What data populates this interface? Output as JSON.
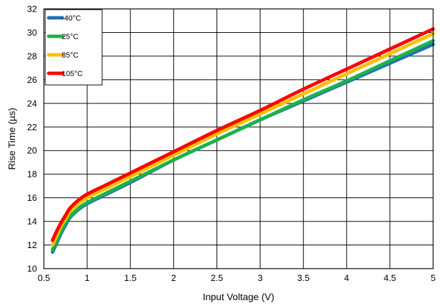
{
  "chart_data": {
    "type": "line",
    "title": "",
    "xlabel": "Input Voltage (V)",
    "ylabel": "Rise Time (µs)",
    "xlim": [
      0.5,
      5
    ],
    "ylim": [
      10,
      32
    ],
    "x_ticks": [
      0.5,
      1,
      1.5,
      2,
      2.5,
      3,
      3.5,
      4,
      4.5,
      5
    ],
    "x_tick_labels": [
      "0.5",
      "1",
      "1.5",
      "2",
      "2.5",
      "3",
      "3.5",
      "4",
      "4.5",
      "5"
    ],
    "y_ticks": [
      10,
      12,
      14,
      16,
      18,
      20,
      22,
      24,
      26,
      28,
      30,
      32
    ],
    "y_tick_labels": [
      "10",
      "12",
      "14",
      "16",
      "18",
      "20",
      "22",
      "24",
      "26",
      "28",
      "30",
      "32"
    ],
    "grid": true,
    "legend_position": "top-left",
    "series": [
      {
        "name": "-40°C",
        "color": "#1f6fb4",
        "x": [
          0.6,
          0.65,
          0.7,
          0.75,
          0.8,
          0.9,
          1.0,
          1.25,
          1.5,
          2.0,
          2.5,
          3.0,
          3.5,
          4.0,
          4.5,
          5.0
        ],
        "y": [
          11.4,
          12.2,
          13.0,
          13.7,
          14.3,
          15.0,
          15.5,
          16.4,
          17.3,
          19.2,
          20.9,
          22.6,
          24.2,
          25.8,
          27.4,
          29.0
        ]
      },
      {
        "name": "25°C",
        "color": "#1db14b",
        "x": [
          0.6,
          0.65,
          0.7,
          0.75,
          0.8,
          0.9,
          1.0,
          1.25,
          1.5,
          2.0,
          2.5,
          3.0,
          3.5,
          4.0,
          4.5,
          5.0
        ],
        "y": [
          11.6,
          12.4,
          13.2,
          13.9,
          14.4,
          15.1,
          15.6,
          16.5,
          17.4,
          19.2,
          20.9,
          22.6,
          24.3,
          25.9,
          27.6,
          29.3
        ]
      },
      {
        "name": "85°C",
        "color": "#ffc000",
        "x": [
          0.6,
          0.65,
          0.7,
          0.75,
          0.8,
          0.9,
          1.0,
          1.25,
          1.5,
          2.0,
          2.5,
          3.0,
          3.5,
          4.0,
          4.5,
          5.0
        ],
        "y": [
          12.0,
          12.8,
          13.6,
          14.2,
          14.8,
          15.5,
          16.0,
          16.9,
          17.8,
          19.6,
          21.4,
          23.1,
          24.8,
          26.5,
          28.2,
          29.9
        ]
      },
      {
        "name": "105°C",
        "color": "#ff0000",
        "x": [
          0.6,
          0.65,
          0.7,
          0.75,
          0.8,
          0.9,
          1.0,
          1.25,
          1.5,
          2.0,
          2.5,
          3.0,
          3.5,
          4.0,
          4.5,
          5.0
        ],
        "y": [
          12.4,
          13.2,
          13.9,
          14.5,
          15.1,
          15.8,
          16.3,
          17.2,
          18.1,
          19.9,
          21.7,
          23.4,
          25.2,
          26.9,
          28.6,
          30.3
        ]
      }
    ]
  }
}
